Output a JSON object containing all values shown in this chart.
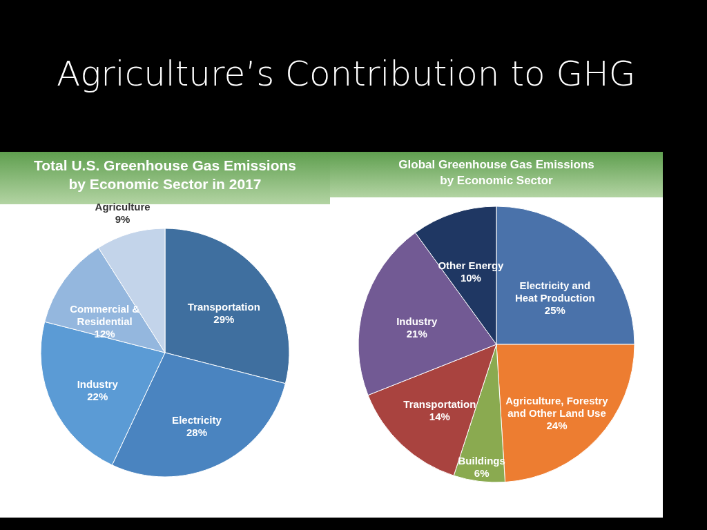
{
  "chart_data": [
    {
      "type": "other",
      "title": "Agriculture’s Contribution to GHG"
    },
    {
      "type": "pie",
      "title": "Total U.S. Greenhouse Gas Emissions by Economic Sector in 2017",
      "categories": [
        "Transportation",
        "Electricity",
        "Industry",
        "Commercial & Residential",
        "Agriculture"
      ],
      "values": [
        29,
        28,
        22,
        12,
        9
      ],
      "colors": [
        "#3f6f9f",
        "#4a84c0",
        "#5b9bd5",
        "#94b7de",
        "#c3d4ea"
      ],
      "value_labels": [
        "29%",
        "28%",
        "22%",
        "12%",
        "9%"
      ]
    },
    {
      "type": "pie",
      "title": "Global Greenhouse Gas Emissions by Economic Sector",
      "categories": [
        "Electricity and Heat Production",
        "Agriculture, Forestry and Other Land Use",
        "Buildings",
        "Transportation",
        "Industry",
        "Other Energy"
      ],
      "values": [
        25,
        24,
        6,
        14,
        21,
        10
      ],
      "colors": [
        "#4a72aa",
        "#ed7d31",
        "#8aaa50",
        "#a9433f",
        "#725a94",
        "#1f3763"
      ],
      "value_labels": [
        "25%",
        "24%",
        "6%",
        "14%",
        "21%",
        "10%"
      ]
    }
  ]
}
